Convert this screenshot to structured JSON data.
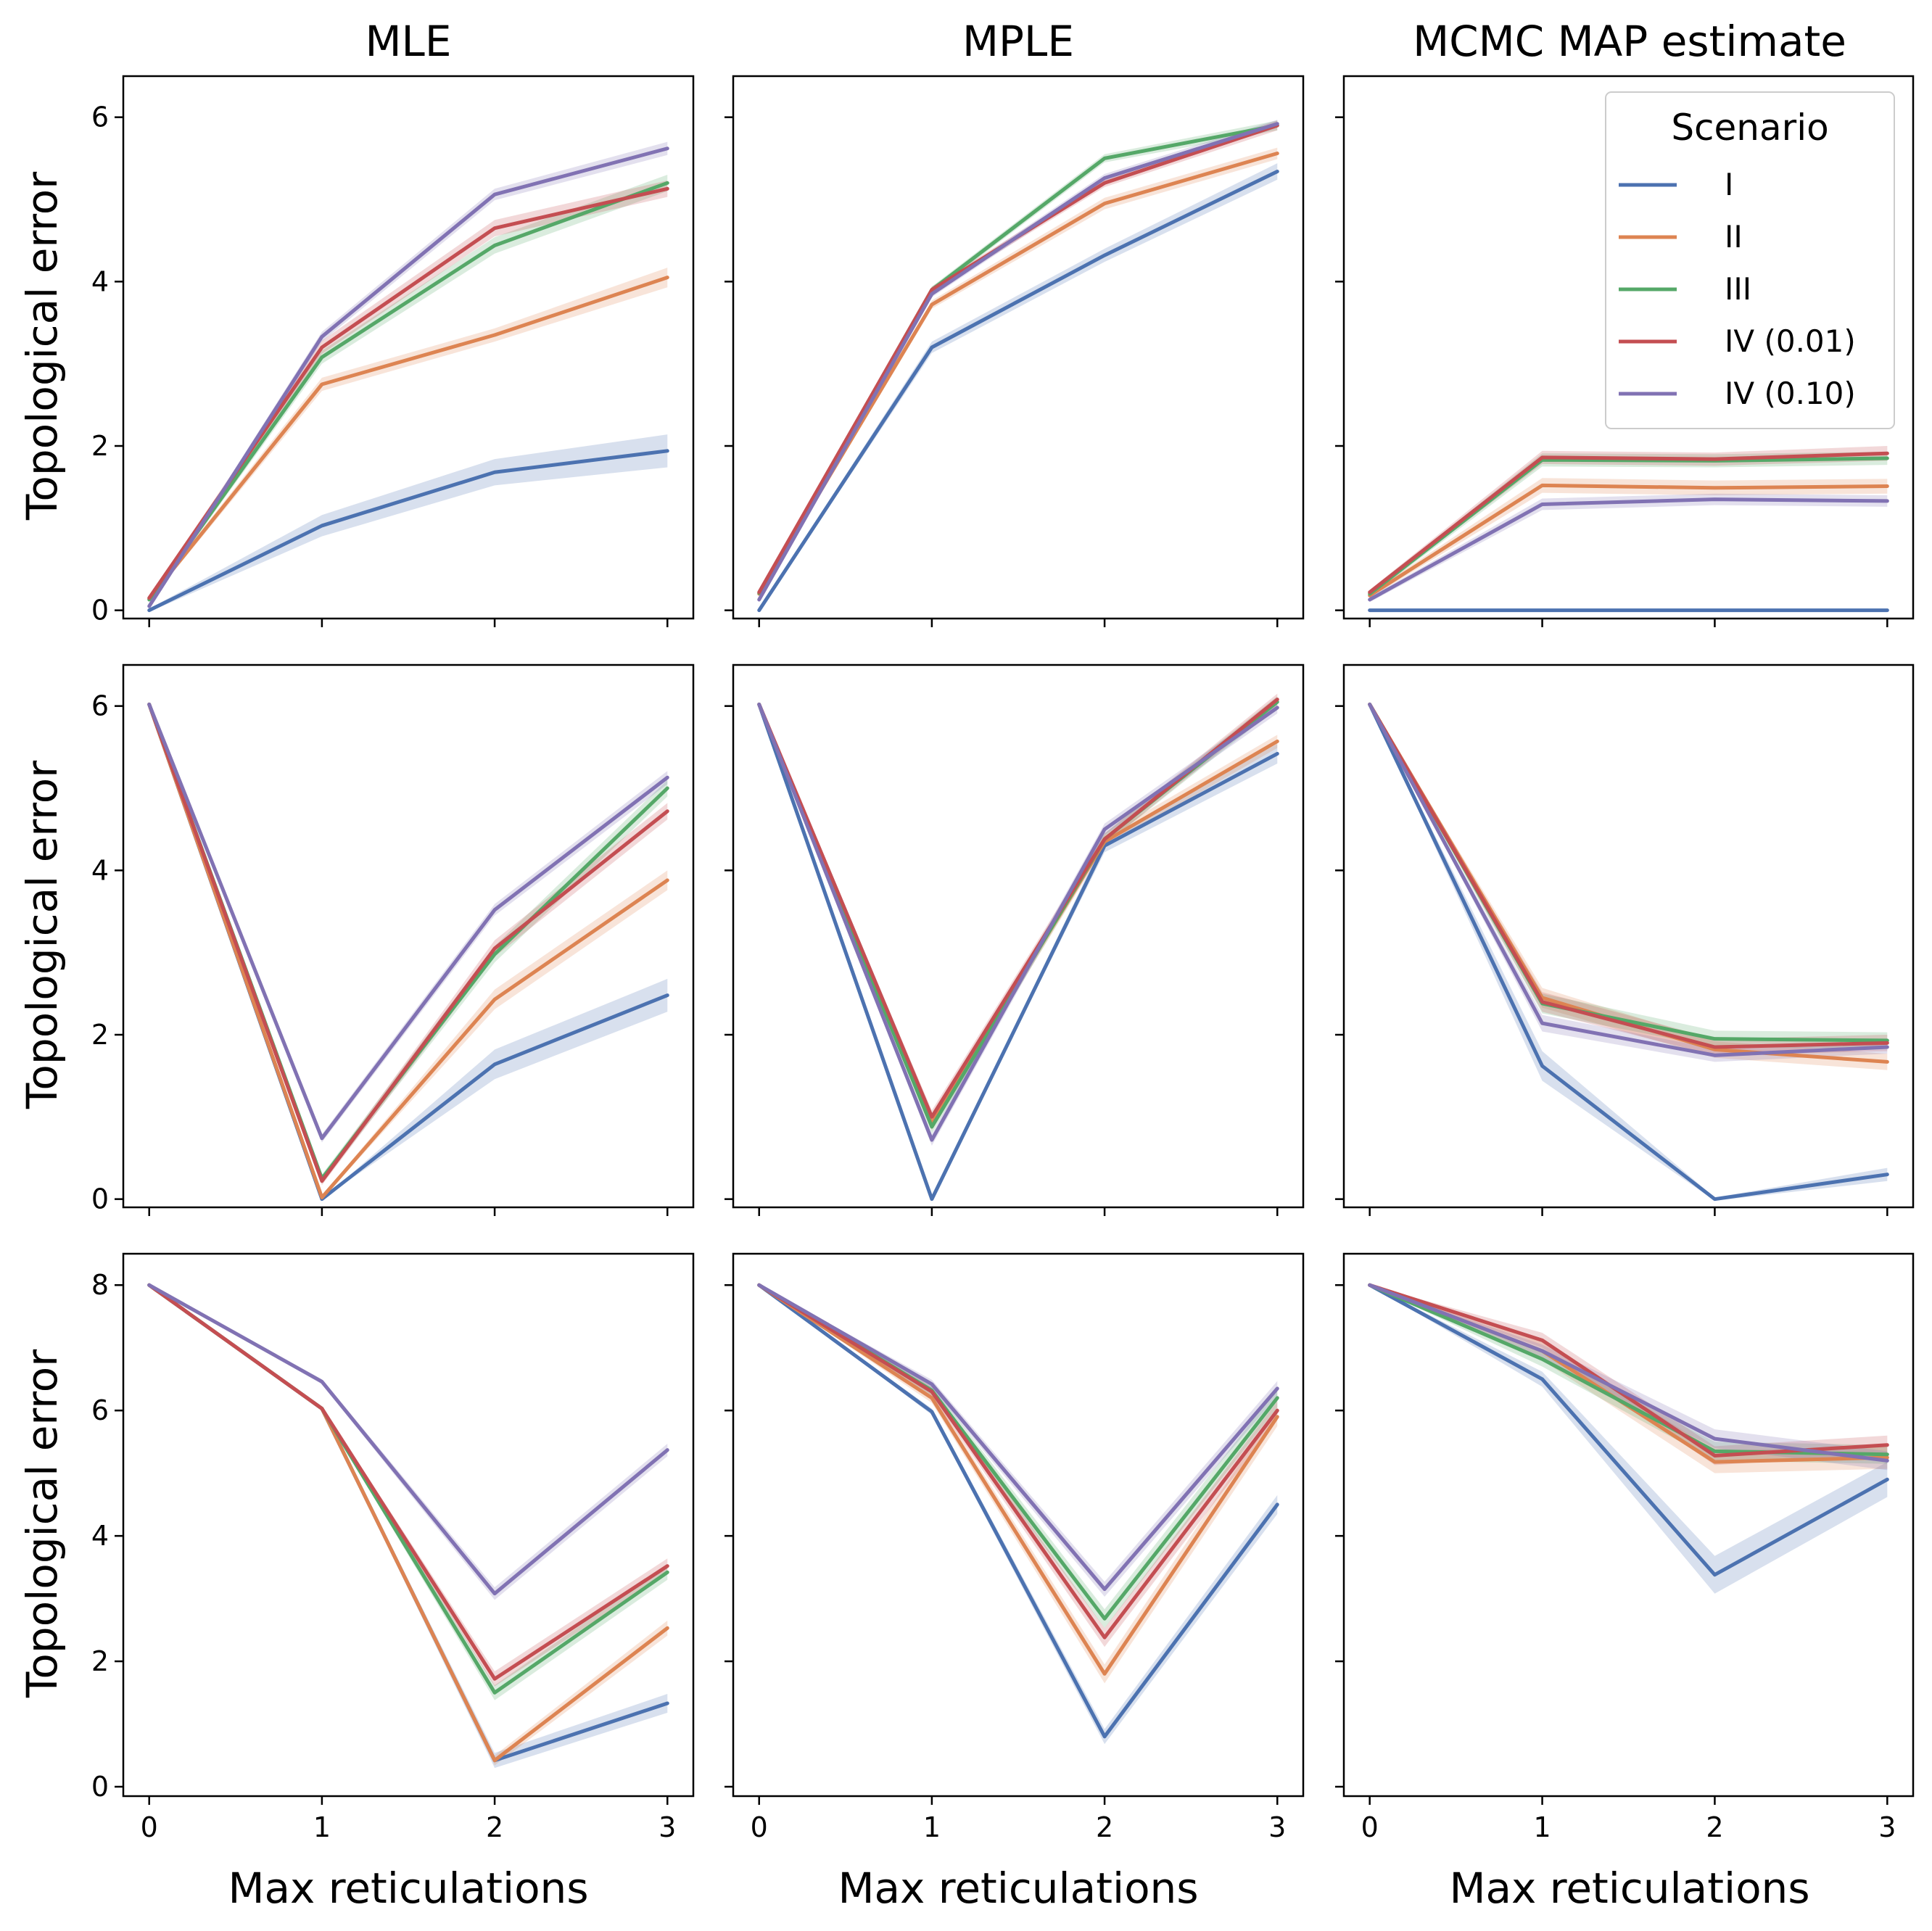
{
  "chart_data": {
    "type": "line",
    "layout": "3x3 grid of subplots, shared x and y axes per row",
    "column_titles": [
      "MLE",
      "MPLE",
      "MCMC MAP estimate"
    ],
    "xlabel": "Max reticulations",
    "ylabel": "Topological error",
    "x": [
      0,
      1,
      2,
      3
    ],
    "x_tick_labels": [
      "0",
      "1",
      "2",
      "3"
    ],
    "xlim": [
      -0.15,
      3.15
    ],
    "rows": [
      {
        "ylim": [
          -0.1,
          6.5
        ],
        "yticks": [
          0,
          2,
          4,
          6
        ],
        "ytick_labels": [
          "0",
          "2",
          "4",
          "6"
        ]
      },
      {
        "ylim": [
          -0.1,
          6.5
        ],
        "yticks": [
          0,
          2,
          4,
          6
        ],
        "ytick_labels": [
          "0",
          "2",
          "4",
          "6"
        ]
      },
      {
        "ylim": [
          -0.15,
          8.5
        ],
        "yticks": [
          0,
          2,
          4,
          6,
          8
        ],
        "ytick_labels": [
          "0",
          "2",
          "4",
          "6",
          "8"
        ]
      }
    ],
    "legend": {
      "title": "Scenario",
      "placement": "top-right of top-right subplot",
      "entries": [
        "I",
        "II",
        "III",
        "IV (0.01)",
        "IV (0.10)"
      ]
    },
    "series_styles": [
      {
        "name": "I",
        "color": "#4c72b0"
      },
      {
        "name": "II",
        "color": "#dd8452"
      },
      {
        "name": "III",
        "color": "#55a868"
      },
      {
        "name": "IV (0.01)",
        "color": "#c44e52"
      },
      {
        "name": "IV (0.10)",
        "color": "#8172b3"
      }
    ],
    "confidence_band": "shaded interval around each line",
    "panels": [
      {
        "row": 0,
        "col": 0,
        "series": [
          {
            "name": "I",
            "values": [
              0.0,
              1.03,
              1.68,
              1.94
            ],
            "band": [
              0.02,
              0.13,
              0.16,
              0.2
            ]
          },
          {
            "name": "II",
            "values": [
              0.14,
              2.75,
              3.35,
              4.05
            ],
            "band": [
              0.03,
              0.08,
              0.08,
              0.12
            ]
          },
          {
            "name": "III",
            "values": [
              0.13,
              3.08,
              4.44,
              5.2
            ],
            "band": [
              0.03,
              0.08,
              0.1,
              0.1
            ]
          },
          {
            "name": "IV (0.01)",
            "values": [
              0.15,
              3.2,
              4.65,
              5.13
            ],
            "band": [
              0.03,
              0.08,
              0.1,
              0.1
            ]
          },
          {
            "name": "IV (0.10)",
            "values": [
              0.05,
              3.33,
              5.06,
              5.62
            ],
            "band": [
              0.03,
              0.06,
              0.07,
              0.08
            ]
          }
        ]
      },
      {
        "row": 0,
        "col": 1,
        "series": [
          {
            "name": "I",
            "values": [
              0.0,
              3.2,
              4.32,
              5.34
            ],
            "band": [
              0.02,
              0.07,
              0.08,
              0.1
            ]
          },
          {
            "name": "II",
            "values": [
              0.2,
              3.72,
              4.95,
              5.56
            ],
            "band": [
              0.03,
              0.05,
              0.07,
              0.07
            ]
          },
          {
            "name": "III",
            "values": [
              0.21,
              3.9,
              5.5,
              5.9
            ],
            "band": [
              0.03,
              0.04,
              0.05,
              0.06
            ]
          },
          {
            "name": "IV (0.01)",
            "values": [
              0.22,
              3.9,
              5.2,
              5.9
            ],
            "band": [
              0.03,
              0.04,
              0.05,
              0.06
            ]
          },
          {
            "name": "IV (0.10)",
            "values": [
              0.13,
              3.85,
              5.26,
              5.92
            ],
            "band": [
              0.03,
              0.04,
              0.05,
              0.05
            ]
          }
        ]
      },
      {
        "row": 0,
        "col": 2,
        "series": [
          {
            "name": "I",
            "values": [
              0.0,
              0.0,
              0.0,
              0.0
            ],
            "band": [
              0.0,
              0.0,
              0.0,
              0.0
            ]
          },
          {
            "name": "II",
            "values": [
              0.18,
              1.52,
              1.49,
              1.51
            ],
            "band": [
              0.03,
              0.09,
              0.09,
              0.09
            ]
          },
          {
            "name": "III",
            "values": [
              0.2,
              1.83,
              1.82,
              1.85
            ],
            "band": [
              0.03,
              0.08,
              0.08,
              0.08
            ]
          },
          {
            "name": "IV (0.01)",
            "values": [
              0.22,
              1.86,
              1.84,
              1.91
            ],
            "band": [
              0.03,
              0.08,
              0.08,
              0.09
            ]
          },
          {
            "name": "IV (0.10)",
            "values": [
              0.13,
              1.29,
              1.35,
              1.33
            ],
            "band": [
              0.03,
              0.07,
              0.07,
              0.07
            ]
          }
        ]
      },
      {
        "row": 1,
        "col": 0,
        "series": [
          {
            "name": "I",
            "values": [
              6.02,
              0.0,
              1.64,
              2.48
            ],
            "band": [
              0.0,
              0.0,
              0.18,
              0.2
            ]
          },
          {
            "name": "II",
            "values": [
              6.02,
              0.02,
              2.43,
              3.88
            ],
            "band": [
              0.0,
              0.02,
              0.12,
              0.12
            ]
          },
          {
            "name": "III",
            "values": [
              6.02,
              0.25,
              2.98,
              5.0
            ],
            "band": [
              0.0,
              0.05,
              0.1,
              0.1
            ]
          },
          {
            "name": "IV (0.01)",
            "values": [
              6.02,
              0.22,
              3.05,
              4.72
            ],
            "band": [
              0.0,
              0.05,
              0.1,
              0.1
            ]
          },
          {
            "name": "IV (0.10)",
            "values": [
              6.02,
              0.74,
              3.52,
              5.13
            ],
            "band": [
              0.0,
              0.05,
              0.07,
              0.08
            ]
          }
        ]
      },
      {
        "row": 1,
        "col": 1,
        "series": [
          {
            "name": "I",
            "values": [
              6.02,
              0.0,
              4.3,
              5.42
            ],
            "band": [
              0.0,
              0.0,
              0.08,
              0.12
            ]
          },
          {
            "name": "II",
            "values": [
              6.02,
              0.92,
              4.35,
              5.57
            ],
            "band": [
              0.0,
              0.08,
              0.07,
              0.08
            ]
          },
          {
            "name": "III",
            "values": [
              6.02,
              0.88,
              4.38,
              6.05
            ],
            "band": [
              0.0,
              0.08,
              0.07,
              0.07
            ]
          },
          {
            "name": "IV (0.01)",
            "values": [
              6.02,
              1.0,
              4.38,
              6.08
            ],
            "band": [
              0.0,
              0.08,
              0.07,
              0.07
            ]
          },
          {
            "name": "IV (0.10)",
            "values": [
              6.02,
              0.72,
              4.5,
              5.98
            ],
            "band": [
              0.0,
              0.07,
              0.07,
              0.07
            ]
          }
        ]
      },
      {
        "row": 1,
        "col": 2,
        "series": [
          {
            "name": "I",
            "values": [
              6.02,
              1.62,
              0.0,
              0.3
            ],
            "band": [
              0.0,
              0.18,
              0.02,
              0.08
            ]
          },
          {
            "name": "II",
            "values": [
              6.02,
              2.45,
              1.82,
              1.67
            ],
            "band": [
              0.0,
              0.12,
              0.1,
              0.1
            ]
          },
          {
            "name": "III",
            "values": [
              6.02,
              2.38,
              1.95,
              1.93
            ],
            "band": [
              0.0,
              0.12,
              0.1,
              0.1
            ]
          },
          {
            "name": "IV (0.01)",
            "values": [
              6.02,
              2.4,
              1.85,
              1.9
            ],
            "band": [
              0.0,
              0.12,
              0.1,
              0.1
            ]
          },
          {
            "name": "IV (0.10)",
            "values": [
              6.02,
              2.14,
              1.75,
              1.85
            ],
            "band": [
              0.0,
              0.1,
              0.08,
              0.08
            ]
          }
        ]
      },
      {
        "row": 2,
        "col": 0,
        "series": [
          {
            "name": "I",
            "values": [
              8.0,
              6.03,
              0.42,
              1.33
            ],
            "band": [
              0.0,
              0.03,
              0.12,
              0.15
            ]
          },
          {
            "name": "II",
            "values": [
              8.0,
              6.03,
              0.42,
              2.53
            ],
            "band": [
              0.0,
              0.03,
              0.08,
              0.12
            ]
          },
          {
            "name": "III",
            "values": [
              8.0,
              6.03,
              1.5,
              3.42
            ],
            "band": [
              0.0,
              0.03,
              0.12,
              0.12
            ]
          },
          {
            "name": "IV (0.01)",
            "values": [
              8.0,
              6.03,
              1.72,
              3.52
            ],
            "band": [
              0.0,
              0.03,
              0.12,
              0.12
            ]
          },
          {
            "name": "IV (0.10)",
            "values": [
              8.0,
              6.46,
              3.08,
              5.37
            ],
            "band": [
              0.0,
              0.04,
              0.1,
              0.1
            ]
          }
        ]
      },
      {
        "row": 2,
        "col": 1,
        "series": [
          {
            "name": "I",
            "values": [
              8.0,
              5.98,
              0.8,
              4.5
            ],
            "band": [
              0.0,
              0.05,
              0.12,
              0.15
            ]
          },
          {
            "name": "II",
            "values": [
              8.0,
              6.2,
              1.8,
              5.9
            ],
            "band": [
              0.0,
              0.08,
              0.15,
              0.15
            ]
          },
          {
            "name": "III",
            "values": [
              8.0,
              6.32,
              2.68,
              6.2
            ],
            "band": [
              0.0,
              0.08,
              0.15,
              0.15
            ]
          },
          {
            "name": "IV (0.01)",
            "values": [
              8.0,
              6.3,
              2.38,
              6.0
            ],
            "band": [
              0.0,
              0.08,
              0.15,
              0.15
            ]
          },
          {
            "name": "IV (0.10)",
            "values": [
              8.0,
              6.42,
              3.15,
              6.35
            ],
            "band": [
              0.0,
              0.07,
              0.12,
              0.12
            ]
          }
        ]
      },
      {
        "row": 2,
        "col": 2,
        "series": [
          {
            "name": "I",
            "values": [
              8.0,
              6.5,
              3.38,
              4.9
            ],
            "band": [
              0.0,
              0.12,
              0.3,
              0.28
            ]
          },
          {
            "name": "II",
            "values": [
              8.0,
              6.95,
              5.18,
              5.25
            ],
            "band": [
              0.0,
              0.15,
              0.18,
              0.18
            ]
          },
          {
            "name": "III",
            "values": [
              8.0,
              6.82,
              5.35,
              5.3
            ],
            "band": [
              0.0,
              0.12,
              0.15,
              0.15
            ]
          },
          {
            "name": "IV (0.01)",
            "values": [
              8.0,
              7.12,
              5.28,
              5.45
            ],
            "band": [
              0.0,
              0.12,
              0.15,
              0.15
            ]
          },
          {
            "name": "IV (0.10)",
            "values": [
              8.0,
              6.95,
              5.55,
              5.2
            ],
            "band": [
              0.0,
              0.1,
              0.15,
              0.15
            ]
          }
        ]
      }
    ]
  }
}
